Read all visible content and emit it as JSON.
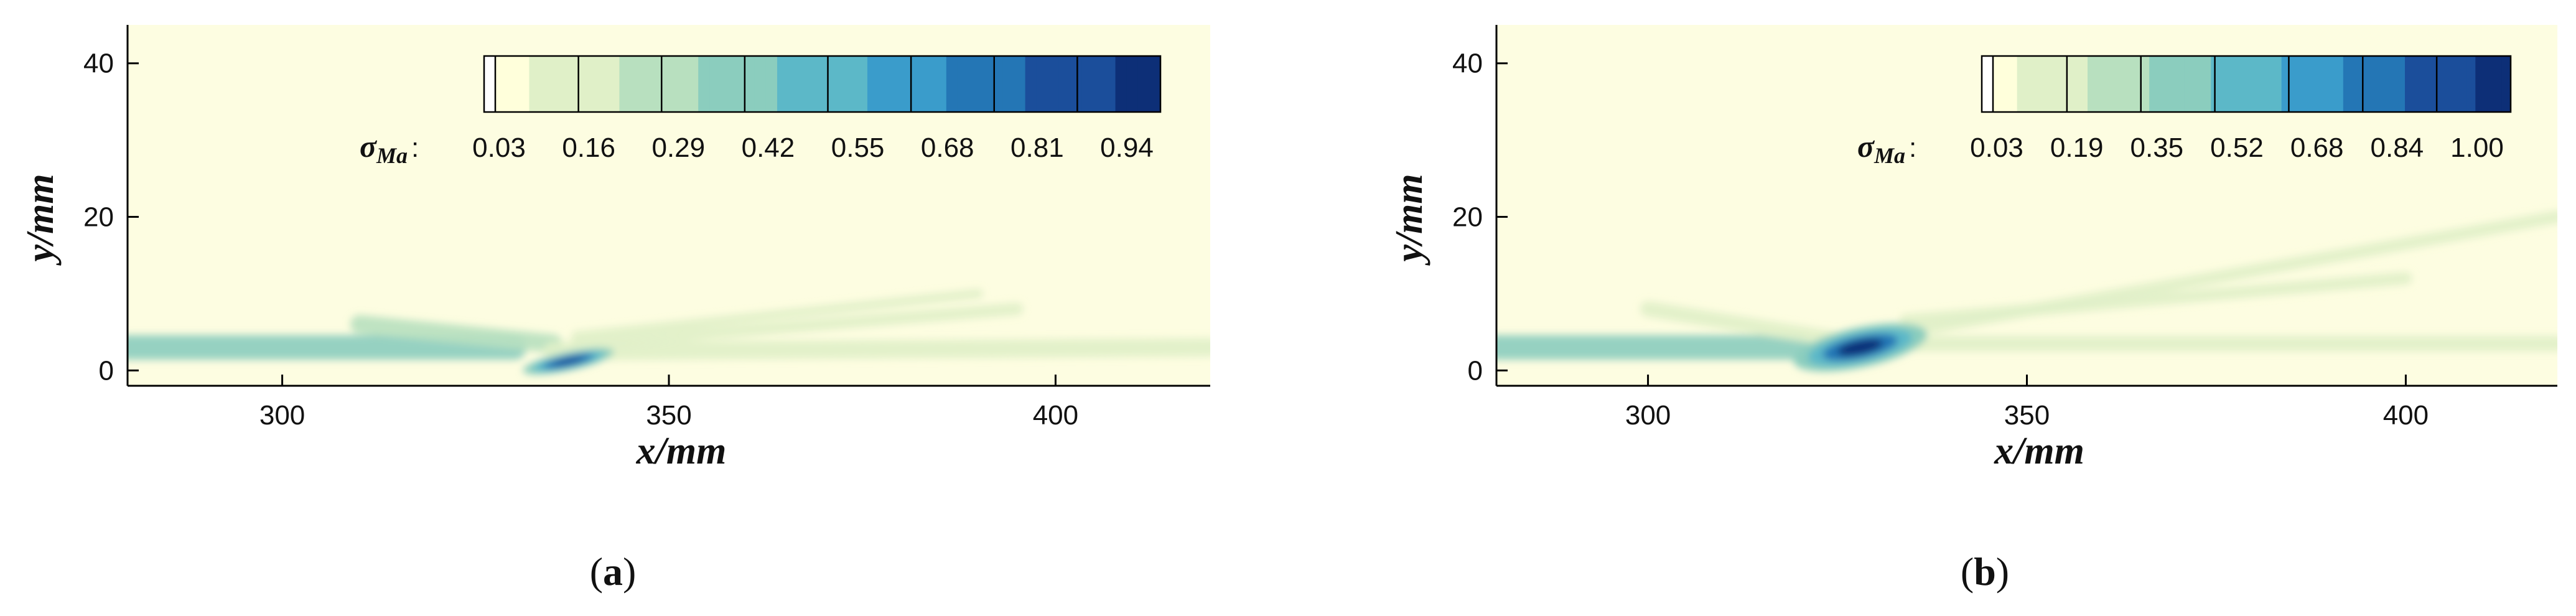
{
  "chart_data": [
    {
      "type": "heatmap",
      "panel_label": "a",
      "xlabel": "x/mm",
      "ylabel": "y/mm",
      "xlim": [
        280,
        420
      ],
      "ylim": [
        -2,
        45
      ],
      "xticks": [
        300,
        350,
        400
      ],
      "yticks": [
        0,
        20,
        40
      ],
      "colorbar": {
        "symbol": "σ",
        "subscript": "Ma",
        "separator": ":",
        "ticks": [
          "0.03",
          "0.16",
          "0.29",
          "0.42",
          "0.55",
          "0.68",
          "0.81",
          "0.94"
        ],
        "range": [
          0,
          1
        ]
      },
      "background_color": "#fdfde1",
      "colors": [
        "#ffffdb",
        "#e0f0c8",
        "#b8e0bf",
        "#8bcdbe",
        "#5cb8c8",
        "#3a9ccb",
        "#2476b5",
        "#1b4e9b",
        "#0d2f77"
      ],
      "features": [
        {
          "kind": "band",
          "x": [
            280,
            330
          ],
          "y": [
            3,
            3
          ],
          "width": 1.6,
          "value": 0.35
        },
        {
          "kind": "band",
          "x": [
            310,
            335
          ],
          "y": [
            6,
            3.5
          ],
          "width": 1.2,
          "value": 0.2
        },
        {
          "kind": "band",
          "x": [
            335,
            420
          ],
          "y": [
            2.5,
            3
          ],
          "width": 1.2,
          "value": 0.16
        },
        {
          "kind": "band",
          "x": [
            338,
            395
          ],
          "y": [
            3.5,
            8
          ],
          "width": 0.8,
          "value": 0.12
        },
        {
          "kind": "band",
          "x": [
            338,
            390
          ],
          "y": [
            4.5,
            10
          ],
          "width": 0.6,
          "value": 0.08
        },
        {
          "kind": "blob",
          "x": 337,
          "y": 1.2,
          "rx": 6,
          "ry": 1.2,
          "value": 0.9
        }
      ]
    },
    {
      "type": "heatmap",
      "panel_label": "b",
      "xlabel": "x/mm",
      "ylabel": "y/mm",
      "xlim": [
        280,
        420
      ],
      "ylim": [
        -2,
        45
      ],
      "xticks": [
        300,
        350,
        400
      ],
      "yticks": [
        0,
        20,
        40
      ],
      "colorbar": {
        "symbol": "σ",
        "subscript": "Ma",
        "separator": ":",
        "ticks": [
          "0.03",
          "0.19",
          "0.35",
          "0.52",
          "0.68",
          "0.84",
          "1.00"
        ],
        "range": [
          0,
          1
        ]
      },
      "background_color": "#fdfde1",
      "colors": [
        "#ffffdb",
        "#e0f0c8",
        "#b8e0bf",
        "#8bcdbe",
        "#5cb8c8",
        "#3a9ccb",
        "#2476b5",
        "#1b4e9b",
        "#0d2f77"
      ],
      "features": [
        {
          "kind": "band",
          "x": [
            280,
            320
          ],
          "y": [
            3,
            3
          ],
          "width": 1.6,
          "value": 0.35
        },
        {
          "kind": "band",
          "x": [
            300,
            325
          ],
          "y": [
            8,
            4
          ],
          "width": 1.0,
          "value": 0.12
        },
        {
          "kind": "band",
          "x": [
            330,
            420
          ],
          "y": [
            3.5,
            3.5
          ],
          "width": 1.0,
          "value": 0.14
        },
        {
          "kind": "band",
          "x": [
            334,
            420
          ],
          "y": [
            5,
            20
          ],
          "width": 0.8,
          "value": 0.1
        },
        {
          "kind": "band",
          "x": [
            334,
            400
          ],
          "y": [
            6.5,
            12
          ],
          "width": 0.8,
          "value": 0.1
        },
        {
          "kind": "blob",
          "x": 328,
          "y": 3,
          "rx": 9,
          "ry": 2.6,
          "value": 0.95
        }
      ]
    }
  ]
}
